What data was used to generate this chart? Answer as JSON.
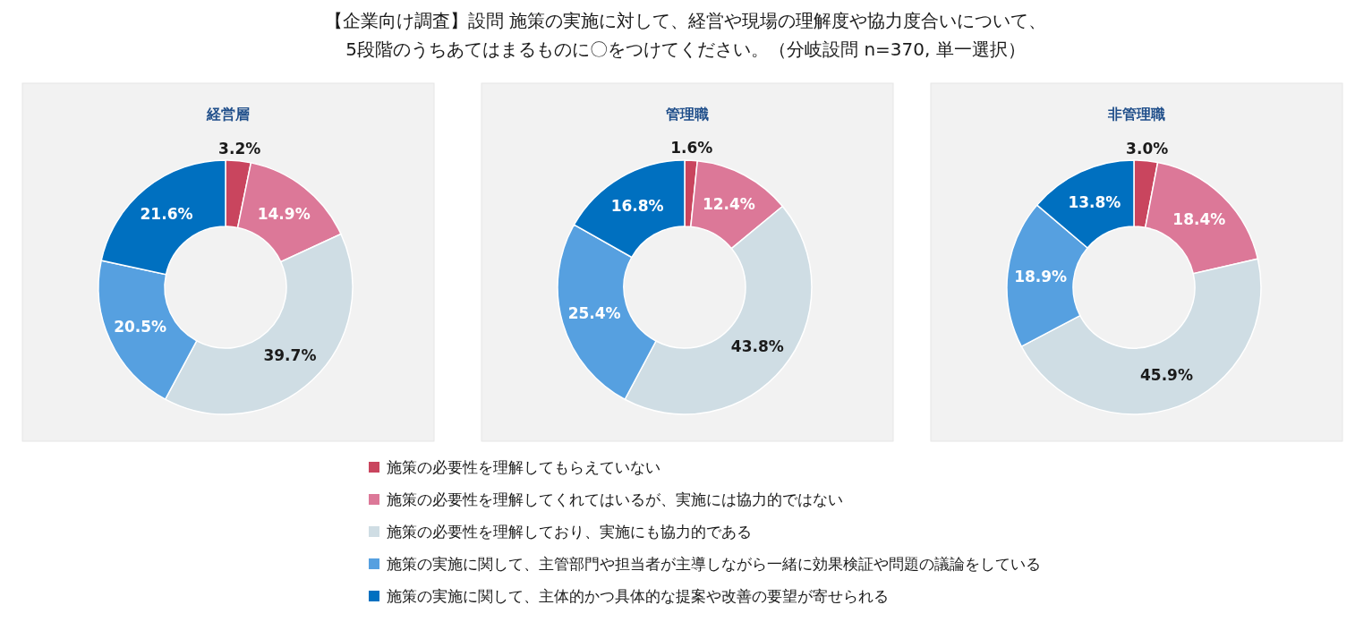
{
  "chart_data": [
    {
      "type": "other",
      "title": "【企業向け調査】設問 施策の実施に対して、経営や現場の理解度や協力度合いについて、\n5段階のうちあてはまるものに〇をつけてください。（分岐設問  n=370, 単一選択）"
    },
    {
      "type": "donut",
      "subtitle": "経営層",
      "legend": "bottom",
      "categories": [
        "施策の必要性を理解してもらえていない",
        "施策の必要性を理解してくれてはいるが、実施には協力的ではない",
        "施策の必要性を理解しており、実施にも協力的である",
        "施策の実施に関して、主管部門や担当者が主導しながら一緒に効果検証や問題の議論をしている",
        "施策の実施に関して、主体的かつ具体的な提案や改善の要望が寄せられる"
      ],
      "values": [
        3.2,
        14.9,
        39.7,
        20.5,
        21.6
      ],
      "value_labels": [
        "3.2%",
        "14.9%",
        "39.7%",
        "20.5%",
        "21.6%"
      ],
      "colors": [
        "#c9455e",
        "#dc7898",
        "#cfdde4",
        "#56a0e0",
        "#0070c0"
      ]
    },
    {
      "type": "donut",
      "subtitle": "管理職",
      "categories": [
        null,
        null,
        null,
        null,
        null
      ],
      "values": [
        1.6,
        12.4,
        43.8,
        25.4,
        16.8
      ],
      "value_labels": [
        "1.6%",
        "12.4%",
        "43.8%",
        "25.4%",
        "16.8%"
      ],
      "colors": [
        "#c9455e",
        "#dc7898",
        "#cfdde4",
        "#56a0e0",
        "#0070c0"
      ]
    },
    {
      "type": "donut",
      "subtitle": "非管理職",
      "categories": [
        null,
        null,
        null,
        null,
        null
      ],
      "values": [
        3.0,
        18.4,
        45.9,
        18.9,
        13.8
      ],
      "value_labels": [
        "3.0%",
        "18.4%",
        "45.9%",
        "18.9%",
        "13.8%"
      ],
      "colors": [
        "#c9455e",
        "#dc7898",
        "#cfdde4",
        "#56a0e0",
        "#0070c0"
      ]
    }
  ]
}
